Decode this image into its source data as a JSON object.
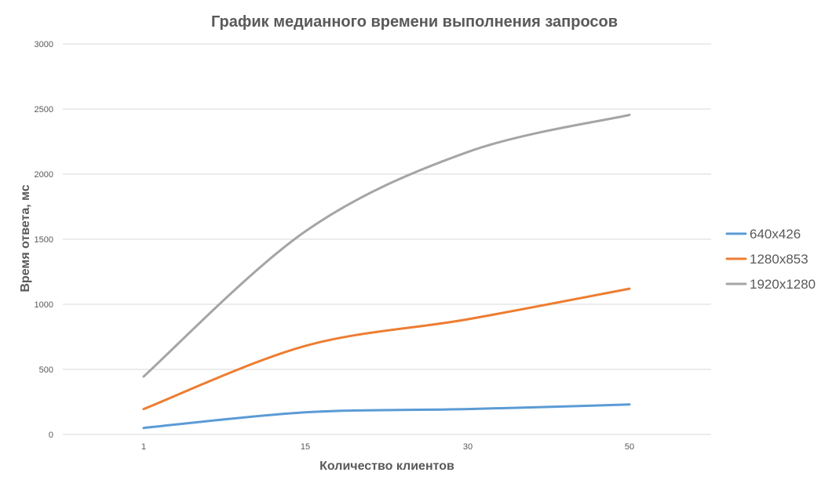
{
  "chart_data": {
    "type": "line",
    "title": "График медианного времени выполнения запросов",
    "xlabel": "Количество клиентов",
    "ylabel": "Время ответа, мс",
    "categories": [
      "1",
      "15",
      "30",
      "50"
    ],
    "ylim": [
      0,
      3000
    ],
    "yticks": [
      "0",
      "500",
      "1000",
      "1500",
      "2000",
      "2500",
      "3000"
    ],
    "grid": true,
    "legend": "right",
    "smooth": true,
    "series": [
      {
        "name": "640x426",
        "color": "#5b9bd5",
        "values": [
          50,
          170,
          195,
          230
        ]
      },
      {
        "name": "1280x853",
        "color": "#ed7d31",
        "values": [
          195,
          680,
          885,
          1120
        ]
      },
      {
        "name": "1920x1280",
        "color": "#a5a5a5",
        "values": [
          445,
          1560,
          2170,
          2455
        ]
      }
    ]
  }
}
